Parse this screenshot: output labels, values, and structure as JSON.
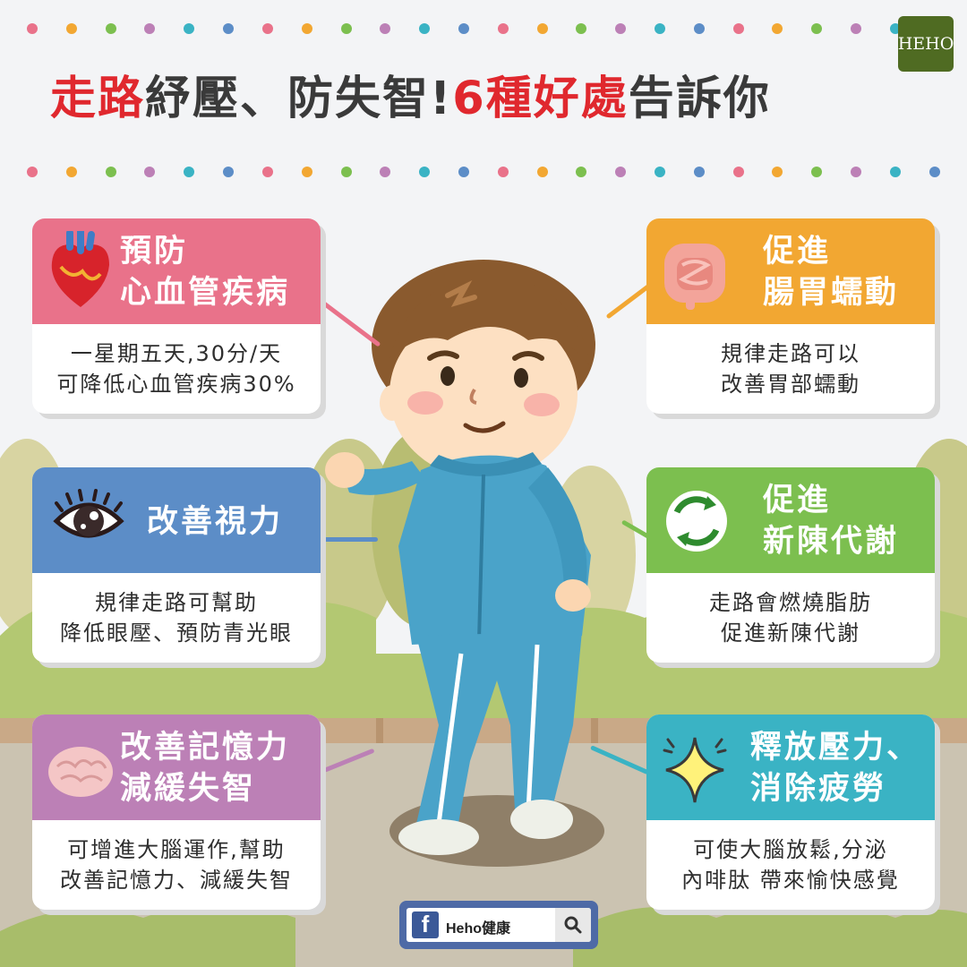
{
  "title": {
    "p1": "走路",
    "p2": "紓壓、防失智!",
    "p3": "6種好處",
    "p4": "告訴你"
  },
  "logo": {
    "text": "HEHO"
  },
  "colors": {
    "red": "#e0282e",
    "pink": "#e9728a",
    "orange": "#f2a732",
    "blue": "#5c8dc7",
    "green": "#7cbf4f",
    "purple": "#bc80b6",
    "teal": "#3ab3c4",
    "fb": "#4e6aa6"
  },
  "dot_colors": [
    "#e9728a",
    "#f2a732",
    "#7cbf4f",
    "#bc80b6",
    "#3ab3c4",
    "#5c8dc7"
  ],
  "cards": {
    "heart": {
      "title1": "預防",
      "title2": "心血管疾病",
      "line1": "一星期五天,30分/天",
      "line2": "可降低心血管疾病30%",
      "icon": "heart-icon"
    },
    "gut": {
      "title1": "促進",
      "title2": "腸胃蠕動",
      "line1": "規律走路可以",
      "line2": "改善胃部蠕動",
      "icon": "intestine-icon"
    },
    "eye": {
      "title1": "改善視力",
      "line1": "規律走路可幫助",
      "line2": "降低眼壓、預防青光眼",
      "icon": "eye-icon"
    },
    "meta": {
      "title1": "促進",
      "title2": "新陳代謝",
      "line1": "走路會燃燒脂肪",
      "line2": "促進新陳代謝",
      "icon": "recycle-arrows-icon"
    },
    "brain": {
      "title1": "改善記憶力",
      "title2": "減緩失智",
      "line1": "可增進大腦運作,幫助",
      "line2": "改善記憶力、減緩失智",
      "icon": "brain-icon"
    },
    "stress": {
      "title1": "釋放壓力、",
      "title2": "消除疲勞",
      "line1": "可使大腦放鬆,分泌",
      "line2": "內啡肽 帶來愉快感覺",
      "icon": "sparkle-icon"
    }
  },
  "facebook": {
    "page_name": "Heho健康",
    "logo_letter": "f"
  }
}
